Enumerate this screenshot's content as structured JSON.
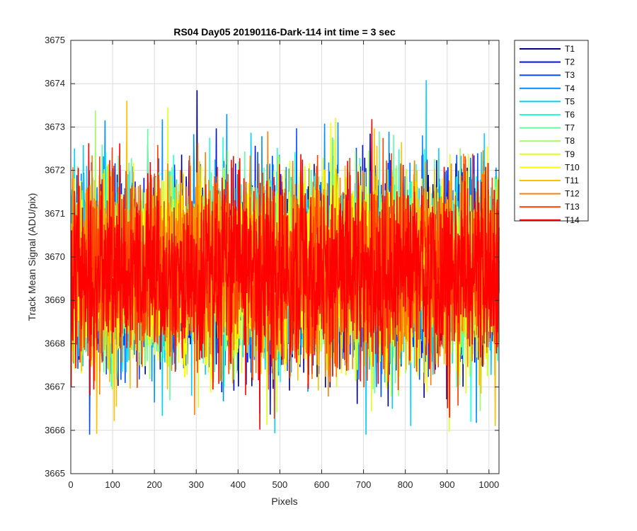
{
  "chart_data": {
    "type": "line",
    "title": "RS04 Day05 20190116-Dark-114 int time = 3 sec",
    "xlabel": "Pixels",
    "ylabel": "Track Mean Signal (ADU/pix)",
    "xlim": [
      0,
      1024
    ],
    "ylim": [
      3665,
      3675
    ],
    "xticks": [
      0,
      100,
      200,
      300,
      400,
      500,
      600,
      700,
      800,
      900,
      1000
    ],
    "yticks": [
      3665,
      3666,
      3667,
      3668,
      3669,
      3670,
      3671,
      3672,
      3673,
      3674,
      3675
    ],
    "grid": true,
    "legend_position": "outside-top-right",
    "x_range": [
      1,
      1024
    ],
    "noise_model": {
      "mean": 3669.7,
      "std": 1.05,
      "min": 3665.9,
      "max": 3674.1
    },
    "series": [
      {
        "name": "T1",
        "color": "#00008f"
      },
      {
        "name": "T2",
        "color": "#0010ff"
      },
      {
        "name": "T3",
        "color": "#0050ff"
      },
      {
        "name": "T4",
        "color": "#008fff"
      },
      {
        "name": "T5",
        "color": "#00cfff"
      },
      {
        "name": "T6",
        "color": "#20ffdf"
      },
      {
        "name": "T7",
        "color": "#60ff9f"
      },
      {
        "name": "T8",
        "color": "#9fff60"
      },
      {
        "name": "T9",
        "color": "#dfff20"
      },
      {
        "name": "T10",
        "color": "#ffff00"
      },
      {
        "name": "T11",
        "color": "#ffc000"
      },
      {
        "name": "T12",
        "color": "#ff8000"
      },
      {
        "name": "T13",
        "color": "#ff4000"
      },
      {
        "name": "T14",
        "color": "#ff0000"
      }
    ],
    "notable_points": [
      {
        "series": "T1",
        "x": 302,
        "y": 3673.85
      },
      {
        "series": "T5",
        "x": 850,
        "y": 3674.08
      },
      {
        "series": "T11",
        "x": 62,
        "y": 3665.92
      },
      {
        "series": "T13",
        "x": 487,
        "y": 3666.27
      }
    ]
  }
}
